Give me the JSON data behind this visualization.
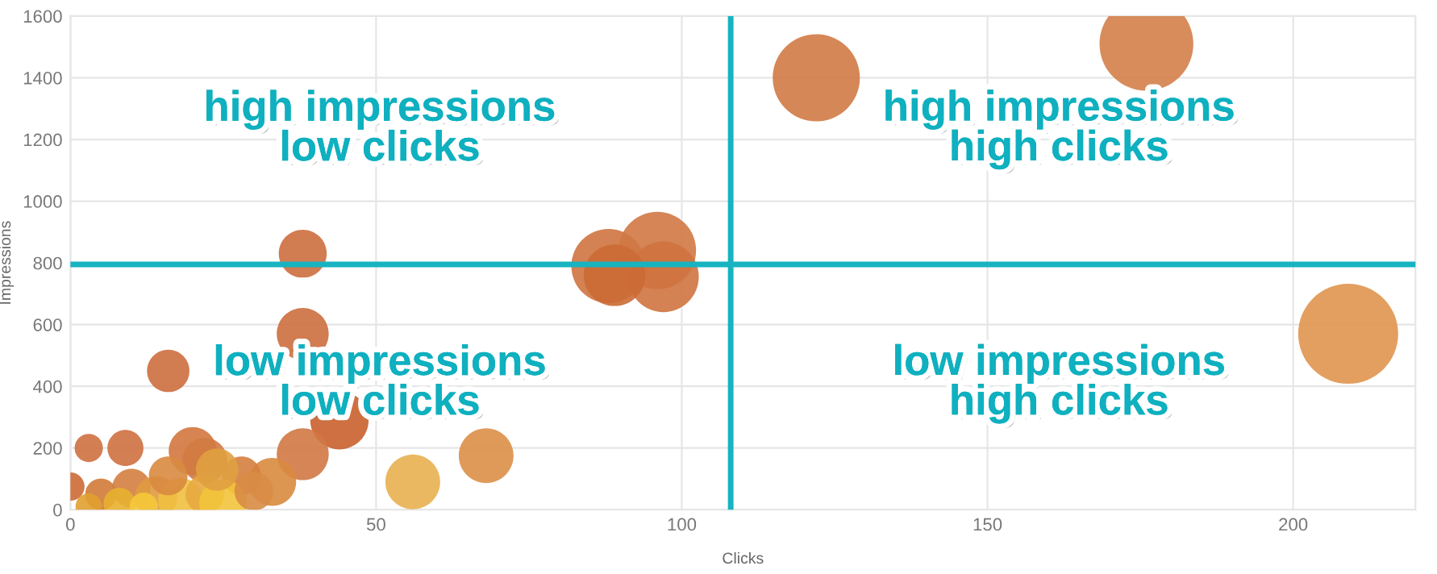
{
  "chart_data": {
    "type": "bubble",
    "xlabel": "Clicks",
    "ylabel": "Impressions",
    "xlim": [
      0,
      220
    ],
    "ylim": [
      0,
      1600
    ],
    "xticks": [
      0,
      50,
      100,
      150,
      200
    ],
    "yticks": [
      0,
      200,
      400,
      600,
      800,
      1000,
      1200,
      1400,
      1600
    ],
    "grid": true,
    "x": [
      176,
      122,
      209,
      88,
      96,
      97,
      89,
      38,
      38,
      16,
      44,
      38,
      68,
      56,
      33,
      28,
      20,
      22,
      9,
      3,
      0,
      5,
      10,
      14,
      18,
      22,
      25,
      8,
      3,
      12,
      16,
      24,
      30
    ],
    "values": [
      1510,
      1400,
      570,
      790,
      840,
      755,
      760,
      830,
      570,
      450,
      290,
      180,
      175,
      90,
      90,
      110,
      190,
      160,
      200,
      200,
      75,
      50,
      70,
      40,
      30,
      50,
      20,
      20,
      10,
      10,
      110,
      130,
      60
    ],
    "sizes": [
      0.88,
      0.76,
      1,
      0.55,
      0.6,
      0.5,
      0.38,
      0.23,
      0.27,
      0.18,
      0.34,
      0.27,
      0.3,
      0.3,
      0.23,
      0.15,
      0.23,
      0.2,
      0.13,
      0.08,
      0.08,
      0.1,
      0.15,
      0.18,
      0.2,
      0.15,
      0.23,
      0.1,
      0.07,
      0.08,
      0.15,
      0.18,
      0.15
    ],
    "colors": [
      "#d4804a",
      "#d27a45",
      "#e0954f",
      "#cf7340",
      "#d07844",
      "#cf7340",
      "#cb6a35",
      "#cc6e3e",
      "#cc6e3e",
      "#cd6e3e",
      "#c9612c",
      "#d07844",
      "#dc8f48",
      "#e8b050",
      "#d9893f",
      "#d5803f",
      "#d3773f",
      "#d27a40",
      "#cf7040",
      "#cf7040",
      "#cc6a35",
      "#d07a38",
      "#d48040",
      "#e09a40",
      "#f0c040",
      "#e8a840",
      "#f2c43a",
      "#e8b030",
      "#e0a030",
      "#f5c93a",
      "#d88a40",
      "#e0a040",
      "#d88c45"
    ],
    "ref_lines": [
      {
        "axis": "y",
        "value": 795,
        "color": "#17b3c0"
      },
      {
        "axis": "x",
        "value": 108,
        "color": "#17b3c0"
      }
    ],
    "annotations": [
      "high impressions\nlow clicks",
      "high impressions\nhigh clicks",
      "low impressions\nlow clicks",
      "low impressions\nhigh clicks"
    ]
  }
}
